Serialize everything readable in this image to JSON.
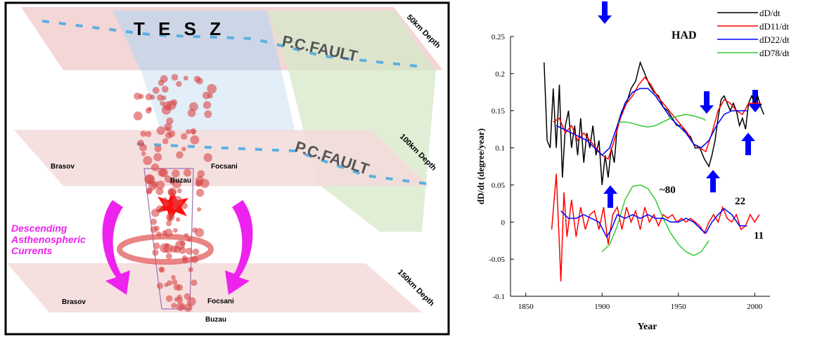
{
  "figure": {
    "tesz": "T E S Z",
    "fault_top": "P.C.FAULT",
    "fault_mid": "P.C.FAULT",
    "depth_50": "50km Depth",
    "depth_100": "100km Depth",
    "depth_150": "150km Depth",
    "brasov_mid": "Brasov",
    "focsani_mid": "Focsani",
    "buzau_mid": "Buzau",
    "brasov_low": "Brasov",
    "focsani_low": "Focsani",
    "buzau_low": "Buzau",
    "currents": [
      "Descending",
      "Asthenospheric",
      "Currents"
    ]
  },
  "chart_data": {
    "type": "line",
    "xlabel": "Year",
    "ylabel": "dD/dt (degree/year)",
    "xlim": [
      1840,
      2010
    ],
    "xticks": [
      1850,
      1900,
      1950,
      2000
    ],
    "ylim": [
      -0.1,
      0.25
    ],
    "yticks": [
      -0.1,
      -0.05,
      0,
      0.05,
      0.1,
      0.15,
      0.2,
      0.25
    ],
    "grid": false,
    "legend": "upper right",
    "annotations": [
      "HAD",
      "~80",
      "22",
      "11"
    ],
    "series": [
      {
        "name": "dD/dt",
        "color": "#000000",
        "x": [
          1862,
          1864,
          1866,
          1868,
          1870,
          1872,
          1874,
          1876,
          1878,
          1880,
          1882,
          1884,
          1886,
          1888,
          1890,
          1892,
          1894,
          1896,
          1898,
          1900,
          1902,
          1904,
          1906,
          1908,
          1910,
          1913,
          1916,
          1919,
          1922,
          1925,
          1928,
          1931,
          1934,
          1937,
          1940,
          1943,
          1946,
          1949,
          1952,
          1955,
          1958,
          1961,
          1964,
          1967,
          1970,
          1972,
          1974,
          1976,
          1978,
          1980,
          1982,
          1984,
          1986,
          1988,
          1990,
          1992,
          1994,
          1996,
          1998,
          2000,
          2002,
          2004,
          2006
        ],
        "values": [
          0.215,
          0.11,
          0.1,
          0.18,
          0.1,
          0.185,
          0.06,
          0.13,
          0.15,
          0.1,
          0.13,
          0.09,
          0.14,
          0.08,
          0.12,
          0.1,
          0.13,
          0.09,
          0.11,
          0.05,
          0.09,
          0.06,
          0.1,
          0.08,
          0.13,
          0.15,
          0.16,
          0.18,
          0.19,
          0.215,
          0.2,
          0.185,
          0.175,
          0.17,
          0.155,
          0.15,
          0.14,
          0.13,
          0.13,
          0.12,
          0.115,
          0.1,
          0.1,
          0.085,
          0.075,
          0.09,
          0.11,
          0.14,
          0.165,
          0.17,
          0.16,
          0.15,
          0.16,
          0.15,
          0.13,
          0.14,
          0.125,
          0.16,
          0.17,
          0.16,
          0.17,
          0.155,
          0.145
        ]
      },
      {
        "name": "dD11/dt",
        "color": "#ff0000",
        "x": [
          1868,
          1872,
          1876,
          1880,
          1884,
          1888,
          1892,
          1896,
          1900,
          1904,
          1908,
          1912,
          1916,
          1920,
          1924,
          1928,
          1932,
          1936,
          1940,
          1944,
          1948,
          1952,
          1956,
          1960,
          1964,
          1968,
          1972,
          1976,
          1980,
          1984,
          1988,
          1992,
          1996,
          2000,
          2004
        ],
        "values": [
          0.135,
          0.14,
          0.12,
          0.13,
          0.11,
          0.12,
          0.11,
          0.1,
          0.09,
          0.085,
          0.11,
          0.14,
          0.16,
          0.17,
          0.185,
          0.195,
          0.185,
          0.17,
          0.16,
          0.15,
          0.14,
          0.13,
          0.12,
          0.105,
          0.1,
          0.095,
          0.12,
          0.15,
          0.165,
          0.16,
          0.15,
          0.145,
          0.16,
          0.16,
          0.16
        ]
      },
      {
        "name": "dD22/dt",
        "color": "#0000ff",
        "x": [
          1870,
          1875,
          1880,
          1885,
          1890,
          1895,
          1900,
          1905,
          1910,
          1915,
          1920,
          1925,
          1930,
          1935,
          1940,
          1945,
          1950,
          1955,
          1960,
          1965,
          1970,
          1975,
          1980,
          1985,
          1990,
          1995
        ],
        "values": [
          0.13,
          0.125,
          0.12,
          0.115,
          0.11,
          0.1,
          0.09,
          0.1,
          0.13,
          0.16,
          0.175,
          0.18,
          0.18,
          0.17,
          0.155,
          0.14,
          0.13,
          0.12,
          0.105,
          0.1,
          0.11,
          0.13,
          0.145,
          0.15,
          0.15,
          0.15
        ]
      },
      {
        "name": "dD78/dt",
        "color": "#33cc33",
        "x": [
          1910,
          1915,
          1920,
          1925,
          1930,
          1935,
          1940,
          1945,
          1950,
          1955,
          1960,
          1965,
          1968
        ],
        "values": [
          0.134,
          0.135,
          0.133,
          0.13,
          0.128,
          0.13,
          0.135,
          0.14,
          0.143,
          0.145,
          0.143,
          0.14,
          0.137
        ]
      },
      {
        "color": "#ff0000",
        "x": [
          1867,
          1870,
          1872,
          1873,
          1875,
          1877,
          1880,
          1883,
          1886,
          1889,
          1892,
          1895,
          1898,
          1901,
          1904,
          1907,
          1910,
          1913,
          1916,
          1919,
          1922,
          1925,
          1928,
          1931,
          1934,
          1937,
          1940,
          1943,
          1946,
          1949,
          1952,
          1955,
          1958,
          1961,
          1964,
          1967,
          1970,
          1973,
          1976,
          1979,
          1982,
          1985,
          1988,
          1991,
          1994,
          1997,
          2000,
          2003
        ],
        "values": [
          -0.01,
          0.065,
          -0.03,
          -0.08,
          0.04,
          -0.02,
          0.03,
          -0.02,
          0.02,
          -0.01,
          0.01,
          0.015,
          -0.01,
          0.02,
          -0.03,
          0.01,
          0.02,
          -0.01,
          0.02,
          0,
          0.015,
          -0.01,
          0.02,
          0,
          0.01,
          -0.005,
          0.01,
          0.005,
          0.01,
          0,
          0.005,
          0,
          0.005,
          0,
          -0.005,
          -0.015,
          0,
          0.01,
          0,
          0.02,
          0.005,
          0,
          0.01,
          -0.01,
          -0.005,
          0.01,
          0,
          0.01
        ]
      },
      {
        "color": "#33cc33",
        "x": [
          1900,
          1905,
          1910,
          1915,
          1920,
          1925,
          1930,
          1935,
          1940,
          1945,
          1950,
          1955,
          1960,
          1965,
          1970
        ],
        "values": [
          -0.04,
          -0.03,
          -0.005,
          0.03,
          0.048,
          0.05,
          0.045,
          0.03,
          0.005,
          -0.015,
          -0.03,
          -0.04,
          -0.045,
          -0.04,
          -0.025
        ]
      },
      {
        "color": "#0000ff",
        "x": [
          1873,
          1878,
          1883,
          1888,
          1893,
          1898,
          1903,
          1906,
          1910,
          1915,
          1920,
          1925,
          1930,
          1935,
          1940,
          1945,
          1950,
          1955,
          1960,
          1965,
          1968,
          1972,
          1976,
          1980,
          1985,
          1990,
          1995
        ],
        "values": [
          0.015,
          0.005,
          0.005,
          0.01,
          0.005,
          0,
          -0.02,
          -0.01,
          0.01,
          0.005,
          0.01,
          0.005,
          0.01,
          0.005,
          0.005,
          0,
          0,
          0.005,
          0,
          -0.01,
          -0.015,
          0,
          0.01,
          0.018,
          0.01,
          -0.005,
          -0.005
        ]
      }
    ]
  }
}
